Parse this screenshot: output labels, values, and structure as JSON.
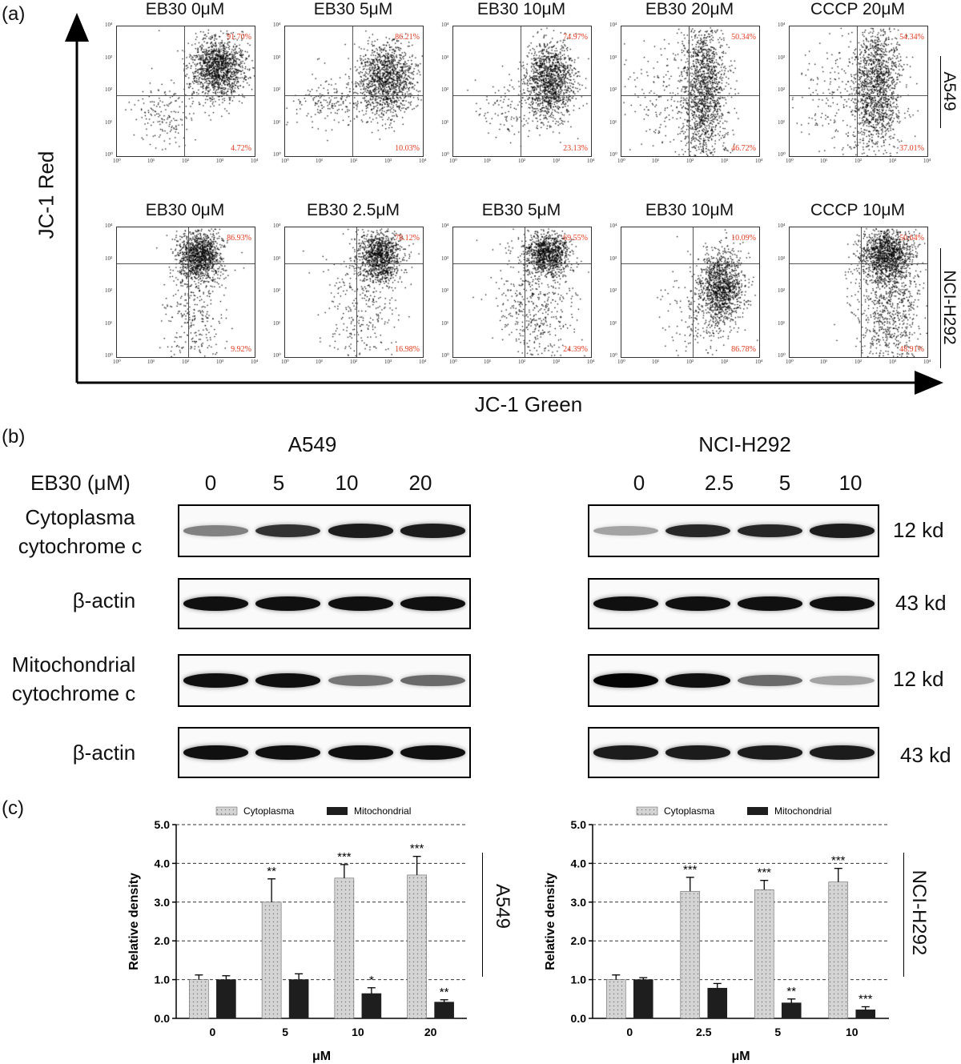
{
  "panel_labels": {
    "a": "(a)",
    "b": "(b)",
    "c": "(c)"
  },
  "flow": {
    "y_axis_label": "JC-1 Red",
    "x_axis_label": "JC-1 Green",
    "tick_labels": [
      "10⁰",
      "10¹",
      "10²",
      "10³",
      "10⁴"
    ],
    "rows": [
      {
        "cell_line": "A549",
        "plots": [
          {
            "title": "EB30 0μM",
            "upper_right": "91.70%",
            "lower_right": "4.72%"
          },
          {
            "title": "EB30 5μM",
            "upper_right": "86.21%",
            "lower_right": "10.03%"
          },
          {
            "title": "EB30 10μM",
            "upper_right": "74.97%",
            "lower_right": "23.13%"
          },
          {
            "title": "EB30 20μM",
            "upper_right": "50.34%",
            "lower_right": "46.72%"
          },
          {
            "title": "CCCP 20μM",
            "upper_right": "54.34%",
            "lower_right": "37.01%"
          }
        ]
      },
      {
        "cell_line": "NCI-H292",
        "plots": [
          {
            "title": "EB30 0μM",
            "upper_right": "86.93%",
            "lower_right": "9.92%"
          },
          {
            "title": "EB30 2.5μM",
            "upper_right": "78.12%",
            "lower_right": "16.98%"
          },
          {
            "title": "EB30 5μM",
            "upper_right": "69.55%",
            "lower_right": "24.39%"
          },
          {
            "title": "EB30 10μM",
            "upper_right": "10.09%",
            "lower_right": "86.78%"
          },
          {
            "title": "CCCP 10μM",
            "upper_right": "50.64%",
            "lower_right": "48.91%"
          }
        ]
      }
    ]
  },
  "western": {
    "conc_header": "EB30 (μM)",
    "left": {
      "cell_line": "A549",
      "concentrations": [
        "0",
        "5",
        "10",
        "20"
      ]
    },
    "right": {
      "cell_line": "NCI-H292",
      "concentrations": [
        "0",
        "2.5",
        "5",
        "10"
      ]
    },
    "rows": [
      {
        "label_line1": "Cytoplasma",
        "label_line2": "cytochrome c",
        "kd": "12 kd"
      },
      {
        "label_line1": "β-actin",
        "label_line2": "",
        "kd": "43 kd"
      },
      {
        "label_line1": "Mitochondrial",
        "label_line2": "cytochrome c",
        "kd": "12 kd"
      },
      {
        "label_line1": "β-actin",
        "label_line2": "",
        "kd": "43 kd"
      }
    ]
  },
  "colors": {
    "percent_text": "#e03a1f",
    "bar_dark": "#1e1e1e",
    "bar_light": "#d4d4d4"
  },
  "chart_data": [
    {
      "type": "bar",
      "cell_line": "A549",
      "categories": [
        "0",
        "5",
        "10",
        "20"
      ],
      "xlabel": "μM",
      "ylabel": "Relative density",
      "ylim": [
        0,
        5
      ],
      "yticks": [
        "0.0",
        "1.0",
        "2.0",
        "3.0",
        "4.0",
        "5.0"
      ],
      "grid": "dashed horizontal",
      "legend": "top",
      "series": [
        {
          "name": "Cytoplasma",
          "values": [
            1.0,
            3.0,
            3.62,
            3.7
          ],
          "errors": [
            0.12,
            0.6,
            0.35,
            0.48
          ],
          "sig": [
            "",
            "**",
            "***",
            "***"
          ]
        },
        {
          "name": "Mitochondrial",
          "values": [
            1.0,
            1.0,
            0.64,
            0.42
          ],
          "errors": [
            0.1,
            0.15,
            0.15,
            0.06
          ],
          "sig": [
            "",
            "",
            "*",
            "**"
          ]
        }
      ]
    },
    {
      "type": "bar",
      "cell_line": "NCI-H292",
      "categories": [
        "0",
        "2.5",
        "5",
        "10"
      ],
      "xlabel": "μM",
      "ylabel": "Relative density",
      "ylim": [
        0,
        5
      ],
      "yticks": [
        "0.0",
        "1.0",
        "2.0",
        "3.0",
        "4.0",
        "5.0"
      ],
      "grid": "dashed horizontal",
      "legend": "top",
      "series": [
        {
          "name": "Cytoplasma",
          "values": [
            1.0,
            3.28,
            3.32,
            3.52
          ],
          "errors": [
            0.12,
            0.36,
            0.24,
            0.35
          ],
          "sig": [
            "",
            "***",
            "***",
            "***"
          ]
        },
        {
          "name": "Mitochondrial",
          "values": [
            1.0,
            0.78,
            0.4,
            0.22
          ],
          "errors": [
            0.05,
            0.12,
            0.1,
            0.08
          ],
          "sig": [
            "",
            "",
            "**",
            "***"
          ]
        }
      ]
    }
  ]
}
